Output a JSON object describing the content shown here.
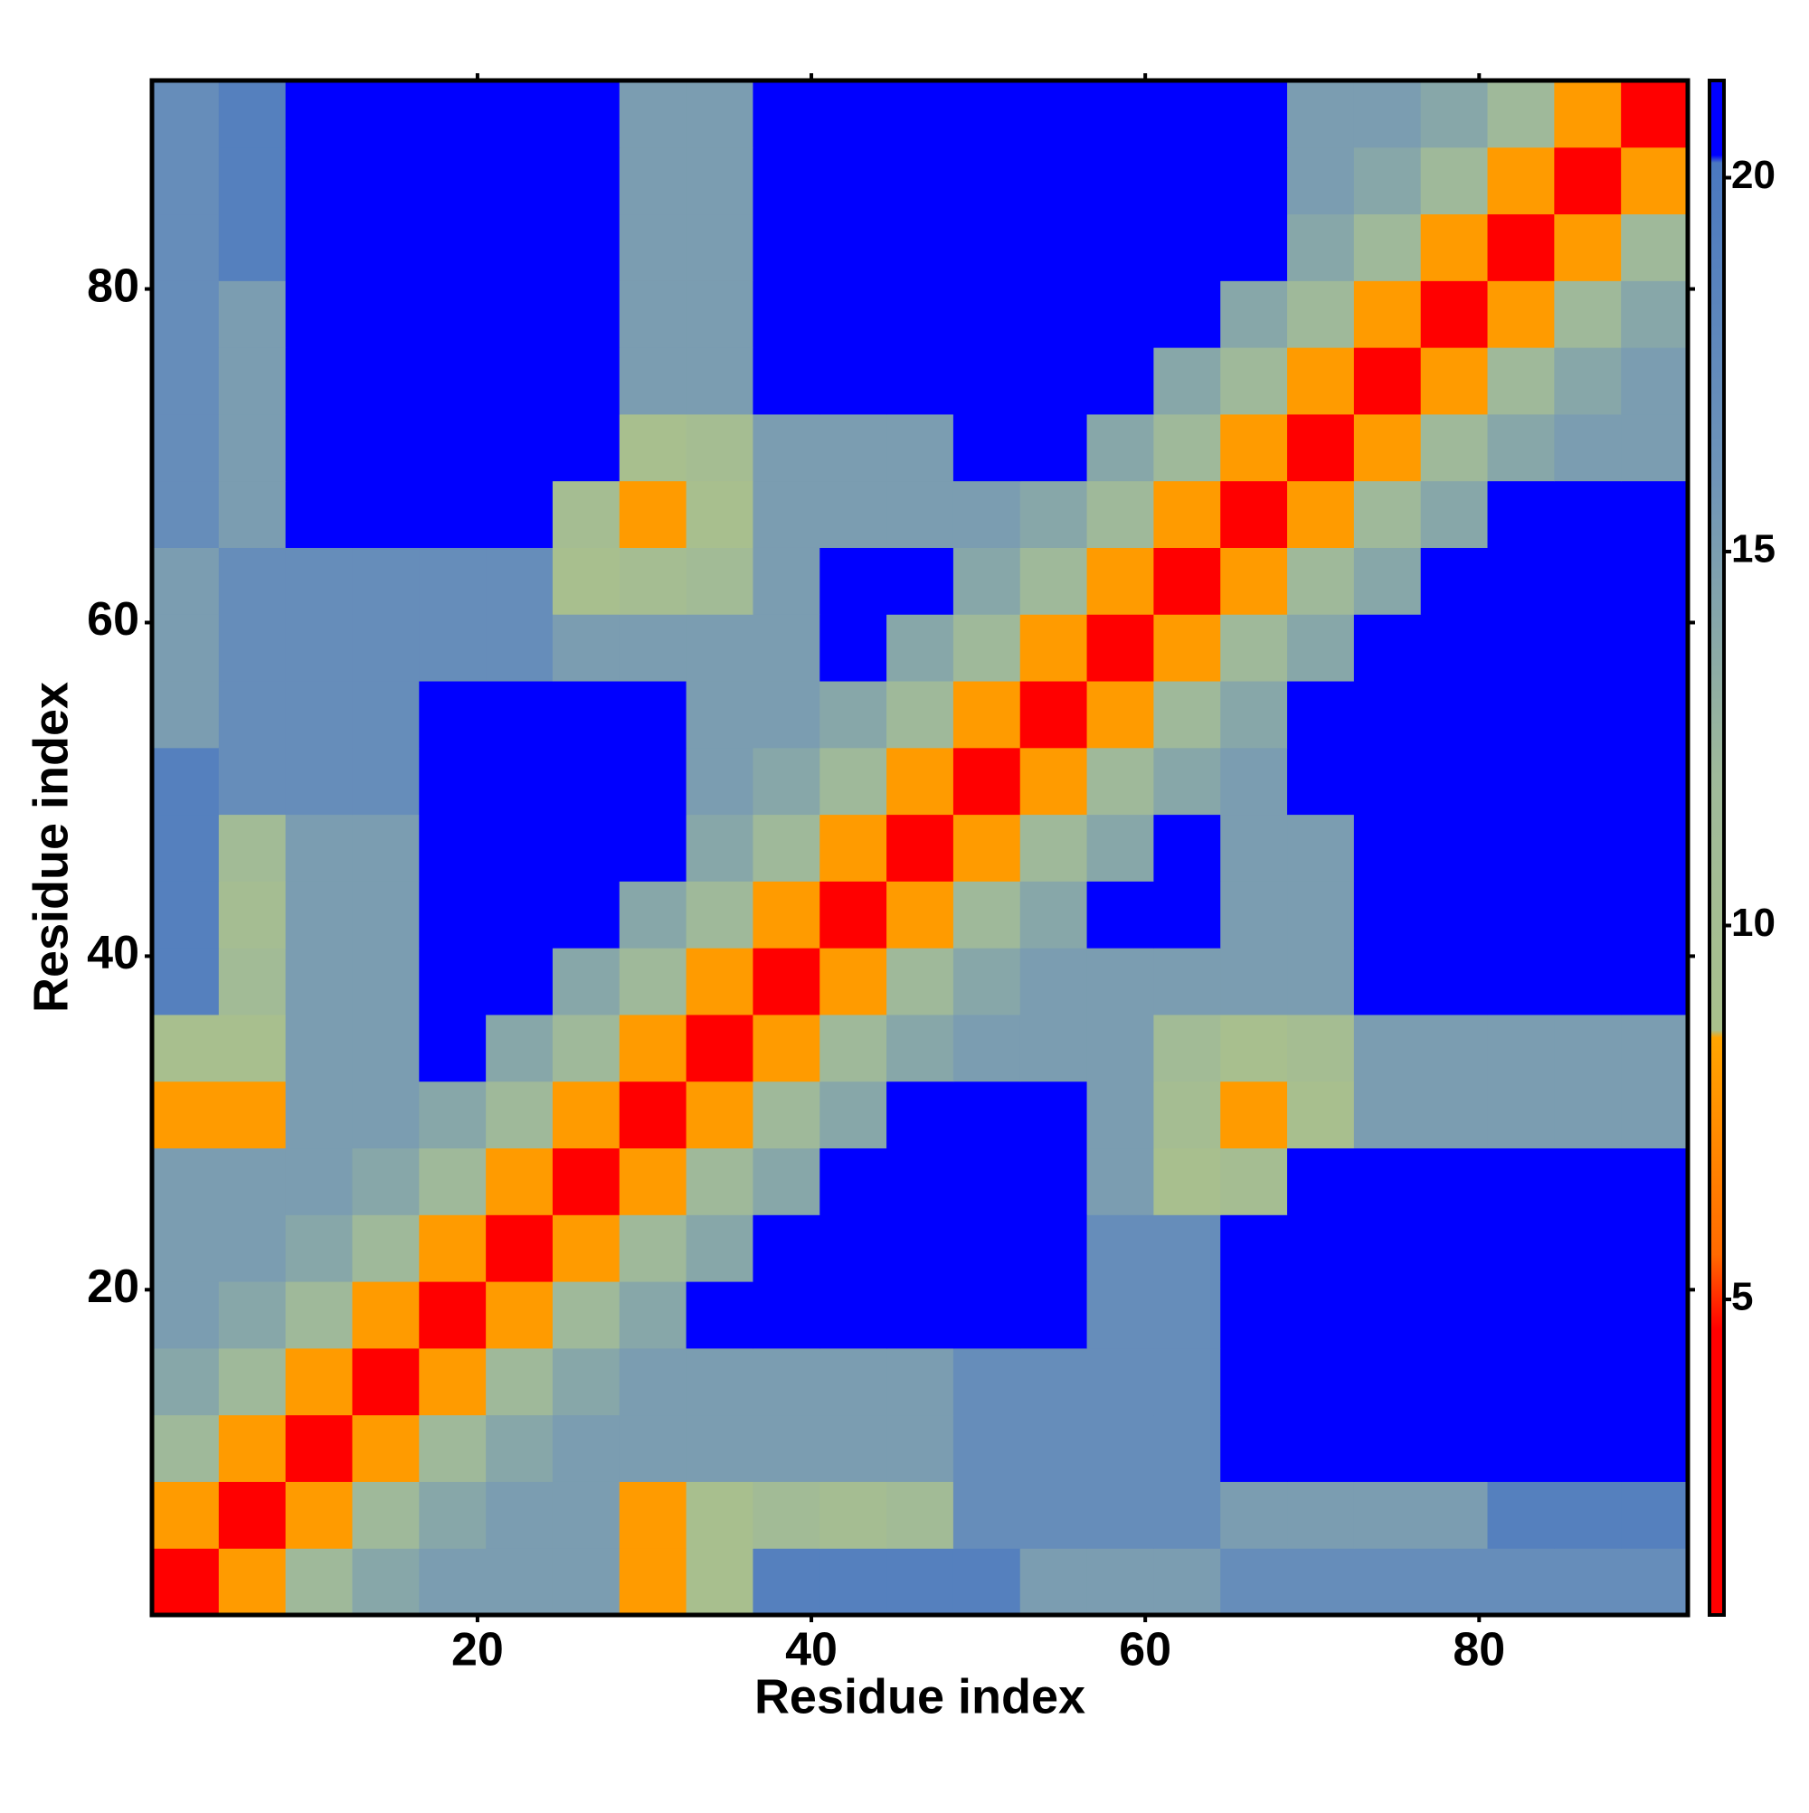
{
  "chart_data": {
    "type": "heatmap",
    "xlabel": "Residue index",
    "ylabel": "Residue index",
    "xbins": [
      0.5,
      4.5,
      8.5,
      12.5,
      16.5,
      20.5,
      24.5,
      28.5,
      32.5,
      36.5,
      40.5,
      44.5,
      48.5,
      52.5,
      56.5,
      60.5,
      64.5,
      68.5,
      72.5,
      76.5,
      80.5,
      84.5,
      88.5,
      92.5
    ],
    "ybins": [
      0.5,
      4.5,
      8.5,
      12.5,
      16.5,
      20.5,
      24.5,
      28.5,
      32.5,
      36.5,
      40.5,
      44.5,
      48.5,
      52.5,
      56.5,
      60.5,
      64.5,
      68.5,
      72.5,
      76.5,
      80.5,
      84.5,
      88.5,
      92.5
    ],
    "xlim": [
      0.5,
      92.5
    ],
    "ylim": [
      0.5,
      92.5
    ],
    "xticks": [
      20,
      40,
      60,
      80
    ],
    "yticks": [
      20,
      40,
      60,
      80
    ],
    "z": [
      [
        3.5,
        8,
        12,
        14,
        15,
        15,
        15,
        8,
        9,
        19,
        19,
        19,
        19,
        15,
        15,
        15,
        17,
        17,
        17,
        17,
        17,
        17,
        17
      ],
      [
        8,
        3.5,
        8,
        12,
        14,
        15,
        15,
        8,
        9,
        11,
        10,
        11,
        17,
        17,
        17,
        17,
        15,
        15,
        15,
        15,
        19,
        19,
        19
      ],
      [
        12,
        8,
        3.5,
        8,
        12,
        14,
        15,
        15,
        15,
        15,
        15,
        15,
        17,
        17,
        17,
        17,
        21,
        21,
        21,
        21,
        21,
        21,
        21
      ],
      [
        14,
        12,
        8,
        3.5,
        8,
        12,
        14,
        15,
        15,
        15,
        15,
        15,
        17,
        17,
        17,
        17,
        21,
        21,
        21,
        21,
        21,
        21,
        21
      ],
      [
        15,
        14,
        12,
        8,
        3.5,
        8,
        12,
        14,
        21,
        21,
        21,
        21,
        21,
        21,
        17,
        17,
        21,
        21,
        21,
        21,
        21,
        21,
        21
      ],
      [
        15,
        15,
        14,
        12,
        8,
        3.5,
        8,
        12,
        14,
        21,
        21,
        21,
        21,
        21,
        17,
        17,
        21,
        21,
        21,
        21,
        21,
        21,
        21
      ],
      [
        15,
        15,
        15,
        14,
        12,
        8,
        3.5,
        8,
        12,
        14,
        21,
        21,
        21,
        21,
        15,
        9,
        10,
        21,
        21,
        21,
        21,
        21,
        21
      ],
      [
        8,
        8,
        15,
        15,
        14,
        12,
        8,
        3.5,
        8,
        12,
        14,
        21,
        21,
        21,
        15,
        10,
        8,
        9,
        15,
        15,
        15,
        15,
        15
      ],
      [
        9,
        9,
        15,
        15,
        21,
        14,
        12,
        8,
        3.5,
        8,
        12,
        14,
        15,
        15,
        15,
        11,
        9,
        10,
        15,
        15,
        15,
        15,
        15
      ],
      [
        19,
        11,
        15,
        15,
        21,
        21,
        14,
        12,
        8,
        3.5,
        8,
        12,
        14,
        15,
        15,
        15,
        15,
        15,
        21,
        21,
        21,
        21,
        21
      ],
      [
        19,
        10,
        15,
        15,
        21,
        21,
        21,
        14,
        12,
        8,
        3.5,
        8,
        12,
        14,
        21,
        21,
        15,
        15,
        21,
        21,
        21,
        21,
        21
      ],
      [
        19,
        11,
        15,
        15,
        21,
        21,
        21,
        21,
        14,
        12,
        8,
        3.5,
        8,
        12,
        14,
        21,
        15,
        15,
        21,
        21,
        21,
        21,
        21
      ],
      [
        19,
        17,
        17,
        17,
        21,
        21,
        21,
        21,
        15,
        14,
        12,
        8,
        3.5,
        8,
        12,
        14,
        15,
        21,
        21,
        21,
        21,
        21,
        21
      ],
      [
        15,
        17,
        17,
        17,
        21,
        21,
        21,
        21,
        15,
        15,
        14,
        12,
        8,
        3.5,
        8,
        12,
        14,
        21,
        21,
        21,
        21,
        21,
        21
      ],
      [
        15,
        17,
        17,
        17,
        17,
        17,
        15,
        15,
        15,
        15,
        21,
        14,
        12,
        8,
        3.5,
        8,
        12,
        14,
        21,
        21,
        21,
        21,
        21
      ],
      [
        15,
        17,
        17,
        17,
        17,
        17,
        9,
        10,
        11,
        15,
        21,
        21,
        14,
        12,
        8,
        3.5,
        8,
        12,
        14,
        21,
        21,
        21,
        21
      ],
      [
        17,
        15,
        21,
        21,
        21,
        21,
        10,
        8,
        9,
        15,
        15,
        15,
        15,
        14,
        12,
        8,
        3.5,
        8,
        12,
        14,
        21,
        21,
        21
      ],
      [
        17,
        15,
        21,
        21,
        21,
        21,
        21,
        9,
        10,
        15,
        15,
        15,
        21,
        21,
        14,
        12,
        8,
        3.5,
        8,
        12,
        14,
        15,
        15
      ],
      [
        17,
        15,
        21,
        21,
        21,
        21,
        21,
        15,
        15,
        21,
        21,
        21,
        21,
        21,
        21,
        14,
        12,
        8,
        3.5,
        8,
        12,
        14,
        15
      ],
      [
        17,
        15,
        21,
        21,
        21,
        21,
        21,
        15,
        15,
        21,
        21,
        21,
        21,
        21,
        21,
        21,
        14,
        12,
        8,
        3.5,
        8,
        12,
        14
      ],
      [
        17,
        19,
        21,
        21,
        21,
        21,
        21,
        15,
        15,
        21,
        21,
        21,
        21,
        21,
        21,
        21,
        21,
        14,
        12,
        8,
        3.5,
        8,
        12
      ],
      [
        17,
        19,
        21,
        21,
        21,
        21,
        21,
        15,
        15,
        21,
        21,
        21,
        21,
        21,
        21,
        21,
        21,
        15,
        14,
        12,
        8,
        3.5,
        8
      ],
      [
        17,
        19,
        21,
        21,
        21,
        21,
        21,
        15,
        15,
        21,
        21,
        21,
        21,
        21,
        21,
        21,
        21,
        15,
        15,
        14,
        12,
        8,
        3.5
      ]
    ],
    "colorscale": [
      [
        0.78,
        "#ff0000"
      ],
      [
        4.6,
        "#ff0000"
      ],
      [
        5.6,
        "#ff6a00"
      ],
      [
        8.5,
        "#ffa500"
      ],
      [
        8.6,
        "#a9c08c"
      ],
      [
        12,
        "#9fb99a"
      ],
      [
        16,
        "#6f94b8"
      ],
      [
        20.2,
        "#4a78c0"
      ],
      [
        20.3,
        "#0000ff"
      ],
      [
        21.3,
        "#0000ff"
      ]
    ],
    "colorbar_lim": [
      0.78,
      21.3
    ],
    "colorbar_ticks": [
      5,
      10,
      15,
      20
    ]
  }
}
